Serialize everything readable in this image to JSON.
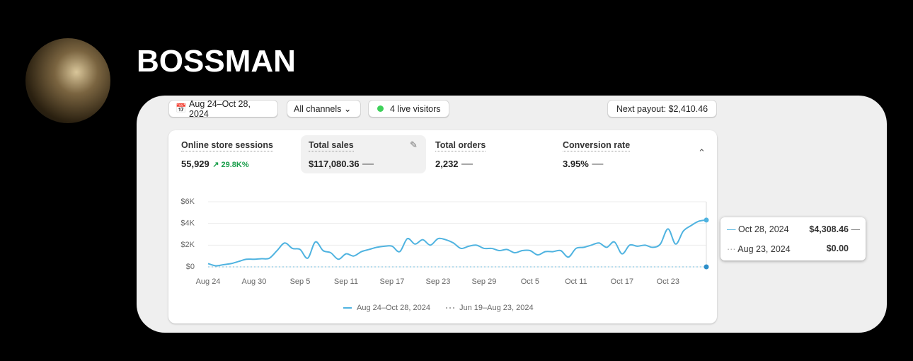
{
  "header": {
    "name": "BOSSMAN"
  },
  "toolbar": {
    "date_range": "Aug 24–Oct 28, 2024",
    "channels": "All channels",
    "live": "4 live visitors",
    "payout": "Next payout: $2,410.46"
  },
  "metrics": [
    {
      "label": "Online store sessions",
      "value": "55,929",
      "change": "29.8K%"
    },
    {
      "label": "Total sales",
      "value": "$117,080.36"
    },
    {
      "label": "Total orders",
      "value": "2,232"
    },
    {
      "label": "Conversion rate",
      "value": "3.95%"
    }
  ],
  "chart_data": {
    "type": "line",
    "categories": [
      "Aug 24",
      null,
      null,
      null,
      null,
      null,
      "Aug 30",
      null,
      null,
      null,
      null,
      null,
      "Sep 5",
      null,
      null,
      null,
      null,
      null,
      "Sep 11",
      null,
      null,
      null,
      null,
      null,
      "Sep 17",
      null,
      null,
      null,
      null,
      null,
      "Sep 23",
      null,
      null,
      null,
      null,
      null,
      "Sep 29",
      null,
      null,
      null,
      null,
      null,
      "Oct 5",
      null,
      null,
      null,
      null,
      null,
      "Oct 11",
      null,
      null,
      null,
      null,
      null,
      "Oct 17",
      null,
      null,
      null,
      null,
      null,
      "Oct 23",
      null,
      null,
      null,
      null,
      null
    ],
    "series": [
      {
        "name": "Aug 24–Oct 28, 2024",
        "color": "#4fb3e0",
        "values": [
          300,
          100,
          200,
          300,
          500,
          700,
          700,
          750,
          800,
          1500,
          2200,
          1700,
          1600,
          800,
          2300,
          1500,
          1300,
          700,
          1200,
          1000,
          1400,
          1600,
          1800,
          1900,
          1900,
          1400,
          2600,
          2100,
          2500,
          2000,
          2600,
          2500,
          2200,
          1700,
          1900,
          2000,
          1700,
          1700,
          1500,
          1600,
          1300,
          1500,
          1500,
          1100,
          1400,
          1400,
          1500,
          900,
          1700,
          1800,
          2000,
          2200,
          1800,
          2300,
          1200,
          2000,
          1900,
          2000,
          1800,
          2100,
          3500,
          2100,
          3300,
          3800,
          4200,
          4308.46
        ]
      },
      {
        "name": "Jun 19–Aug 23, 2024",
        "color": "#8fc9e3",
        "values": [
          0,
          0,
          0,
          0,
          0,
          0,
          0,
          0,
          0,
          0,
          0,
          0,
          0,
          0,
          0,
          0,
          0,
          0,
          0,
          0,
          0,
          0,
          0,
          0,
          0,
          0,
          0,
          0,
          0,
          0,
          0,
          0,
          0,
          0,
          0,
          0,
          0,
          0,
          0,
          0,
          0,
          0,
          0,
          0,
          0,
          0,
          0,
          0,
          0,
          0,
          0,
          0,
          0,
          0,
          0,
          0,
          0,
          0,
          0,
          0,
          0,
          0,
          0,
          0,
          0,
          0
        ]
      }
    ],
    "ylim": [
      0,
      6000
    ],
    "yticks": [
      {
        "value": 0,
        "label": "$0"
      },
      {
        "value": 2000,
        "label": "$2K"
      },
      {
        "value": 4000,
        "label": "$4K"
      },
      {
        "value": 6000,
        "label": "$6K"
      }
    ],
    "grid": true
  },
  "tooltip": [
    {
      "date": "Oct 28, 2024",
      "value": "$4,308.46"
    },
    {
      "date": "Aug 23, 2024",
      "value": "$0.00"
    }
  ]
}
